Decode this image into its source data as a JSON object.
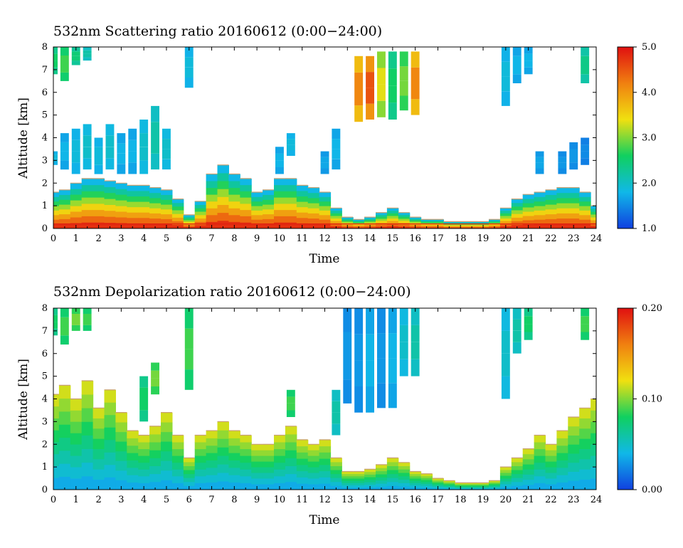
{
  "chart_data": [
    {
      "type": "heatmap",
      "title": "532nm Scattering ratio  20160612 (0:00−24:00)",
      "xlabel": "Time",
      "ylabel": "Altitude [km]",
      "xlim": [
        0,
        24
      ],
      "ylim": [
        0,
        8
      ],
      "x_ticks": [
        "0",
        "1",
        "2",
        "3",
        "4",
        "5",
        "6",
        "7",
        "8",
        "9",
        "10",
        "11",
        "12",
        "13",
        "14",
        "15",
        "16",
        "17",
        "18",
        "19",
        "20",
        "21",
        "22",
        "23",
        "24"
      ],
      "y_ticks": [
        "0",
        "1",
        "2",
        "3",
        "4",
        "5",
        "6",
        "7",
        "8"
      ],
      "colorbar": {
        "range": [
          1.0,
          5.0
        ],
        "tick_labels": [
          "1.0",
          "2.0",
          "3.0",
          "4.0",
          "5.0"
        ],
        "colors": [
          "#1040e0",
          "#10b8e8",
          "#10d060",
          "#f0e010",
          "#f08010",
          "#e01010"
        ]
      },
      "column_profiles": [
        {
          "t": 0.0,
          "top": 1.6,
          "clouds": [
            [
              2.8,
              3.4,
              1.9
            ],
            [
              6.8,
              8.0,
              2.6
            ]
          ]
        },
        {
          "t": 0.5,
          "top": 1.7,
          "clouds": [
            [
              2.6,
              4.2,
              1.8
            ],
            [
              6.5,
              8.0,
              2.8
            ]
          ]
        },
        {
          "t": 1.0,
          "top": 2.0,
          "clouds": [
            [
              2.4,
              4.4,
              1.9
            ],
            [
              7.2,
              8.0,
              2.5
            ]
          ]
        },
        {
          "t": 1.5,
          "top": 2.2,
          "clouds": [
            [
              2.6,
              4.6,
              2.0
            ],
            [
              7.4,
              8.0,
              2.2
            ]
          ]
        },
        {
          "t": 2.0,
          "top": 2.2,
          "clouds": [
            [
              2.4,
              4.0,
              1.9
            ]
          ]
        },
        {
          "t": 2.5,
          "top": 2.1,
          "clouds": [
            [
              2.6,
              4.6,
              2.0
            ]
          ]
        },
        {
          "t": 3.0,
          "top": 2.0,
          "clouds": [
            [
              2.4,
              4.2,
              1.8
            ]
          ]
        },
        {
          "t": 3.5,
          "top": 1.9,
          "clouds": [
            [
              2.4,
              4.4,
              1.8
            ]
          ]
        },
        {
          "t": 4.0,
          "top": 1.9,
          "clouds": [
            [
              2.4,
              4.8,
              2.0
            ]
          ]
        },
        {
          "t": 4.5,
          "top": 1.8,
          "clouds": [
            [
              2.6,
              5.4,
              2.2
            ]
          ]
        },
        {
          "t": 5.0,
          "top": 1.7,
          "clouds": [
            [
              2.6,
              4.4,
              2.0
            ]
          ]
        },
        {
          "t": 5.5,
          "top": 1.3,
          "clouds": []
        },
        {
          "t": 6.0,
          "top": 0.6,
          "clouds": [
            [
              6.2,
              8.0,
              1.9
            ]
          ]
        },
        {
          "t": 6.5,
          "top": 1.2,
          "clouds": []
        },
        {
          "t": 7.0,
          "top": 2.4,
          "clouds": []
        },
        {
          "t": 7.5,
          "top": 2.8,
          "clouds": []
        },
        {
          "t": 8.0,
          "top": 2.4,
          "clouds": []
        },
        {
          "t": 8.5,
          "top": 2.2,
          "clouds": []
        },
        {
          "t": 9.0,
          "top": 1.6,
          "clouds": []
        },
        {
          "t": 9.5,
          "top": 1.7,
          "clouds": []
        },
        {
          "t": 10.0,
          "top": 2.2,
          "clouds": [
            [
              2.4,
              3.6,
              1.8
            ]
          ]
        },
        {
          "t": 10.5,
          "top": 2.2,
          "clouds": [
            [
              3.2,
              4.2,
              1.9
            ]
          ]
        },
        {
          "t": 11.0,
          "top": 1.9,
          "clouds": []
        },
        {
          "t": 11.5,
          "top": 1.8,
          "clouds": []
        },
        {
          "t": 12.0,
          "top": 1.6,
          "clouds": [
            [
              2.4,
              3.4,
              1.7
            ]
          ]
        },
        {
          "t": 12.5,
          "top": 0.9,
          "clouds": [
            [
              2.6,
              4.4,
              1.8
            ]
          ]
        },
        {
          "t": 13.0,
          "top": 0.5,
          "clouds": []
        },
        {
          "t": 13.5,
          "top": 0.4,
          "clouds": [
            [
              4.7,
              7.6,
              4.2
            ]
          ]
        },
        {
          "t": 14.0,
          "top": 0.5,
          "clouds": [
            [
              4.8,
              7.6,
              4.6
            ]
          ]
        },
        {
          "t": 14.5,
          "top": 0.7,
          "clouds": [
            [
              4.9,
              7.8,
              3.4
            ]
          ]
        },
        {
          "t": 15.0,
          "top": 0.9,
          "clouds": [
            [
              4.8,
              7.8,
              2.6
            ]
          ]
        },
        {
          "t": 15.5,
          "top": 0.7,
          "clouds": [
            [
              5.2,
              7.8,
              3.0
            ]
          ]
        },
        {
          "t": 16.0,
          "top": 0.5,
          "clouds": [
            [
              5.0,
              7.8,
              4.2
            ]
          ]
        },
        {
          "t": 16.5,
          "top": 0.4,
          "clouds": []
        },
        {
          "t": 17.0,
          "top": 0.4,
          "clouds": []
        },
        {
          "t": 17.5,
          "top": 0.3,
          "clouds": []
        },
        {
          "t": 18.0,
          "top": 0.3,
          "clouds": []
        },
        {
          "t": 18.5,
          "top": 0.3,
          "clouds": []
        },
        {
          "t": 19.0,
          "top": 0.3,
          "clouds": []
        },
        {
          "t": 19.5,
          "top": 0.4,
          "clouds": []
        },
        {
          "t": 20.0,
          "top": 0.9,
          "clouds": [
            [
              5.4,
              8.0,
              1.9
            ]
          ]
        },
        {
          "t": 20.5,
          "top": 1.3,
          "clouds": [
            [
              6.4,
              8.0,
              1.8
            ]
          ]
        },
        {
          "t": 21.0,
          "top": 1.5,
          "clouds": [
            [
              6.8,
              8.0,
              1.8
            ]
          ]
        },
        {
          "t": 21.5,
          "top": 1.6,
          "clouds": [
            [
              2.4,
              3.4,
              1.7
            ]
          ]
        },
        {
          "t": 22.0,
          "top": 1.7,
          "clouds": []
        },
        {
          "t": 22.5,
          "top": 1.8,
          "clouds": [
            [
              2.4,
              3.4,
              1.6
            ]
          ]
        },
        {
          "t": 23.0,
          "top": 1.8,
          "clouds": [
            [
              2.6,
              3.8,
              1.6
            ]
          ]
        },
        {
          "t": 23.5,
          "top": 1.6,
          "clouds": [
            [
              2.8,
              4.0,
              1.5
            ],
            [
              6.4,
              8.0,
              2.4
            ]
          ]
        },
        {
          "t": 24.0,
          "top": 1.0,
          "clouds": []
        }
      ]
    },
    {
      "type": "heatmap",
      "title": "532nm Depolarization ratio  20160612 (0:00−24:00)",
      "xlabel": "Time",
      "ylabel": "Altitude [km]",
      "xlim": [
        0,
        24
      ],
      "ylim": [
        0,
        8
      ],
      "x_ticks": [
        "0",
        "1",
        "2",
        "3",
        "4",
        "5",
        "6",
        "7",
        "8",
        "9",
        "10",
        "11",
        "12",
        "13",
        "14",
        "15",
        "16",
        "17",
        "18",
        "19",
        "20",
        "21",
        "22",
        "23",
        "24"
      ],
      "y_ticks": [
        "0",
        "1",
        "2",
        "3",
        "4",
        "5",
        "6",
        "7",
        "8"
      ],
      "colorbar": {
        "range": [
          0.0,
          0.2
        ],
        "tick_labels": [
          "0.00",
          "0.10",
          "0.20"
        ],
        "colors": [
          "#1040e0",
          "#10b8e8",
          "#10d060",
          "#f0e010",
          "#f08010",
          "#e01010"
        ]
      },
      "column_profiles": [
        {
          "t": 0.0,
          "top": 4.2,
          "clouds": [
            [
              6.8,
              8.0,
              0.08
            ]
          ]
        },
        {
          "t": 0.5,
          "top": 4.6,
          "clouds": [
            [
              6.4,
              8.0,
              0.09
            ]
          ]
        },
        {
          "t": 1.0,
          "top": 4.0,
          "clouds": [
            [
              7.0,
              8.0,
              0.1
            ]
          ]
        },
        {
          "t": 1.5,
          "top": 4.8,
          "clouds": [
            [
              7.0,
              8.0,
              0.09
            ]
          ]
        },
        {
          "t": 2.0,
          "top": 3.6,
          "clouds": []
        },
        {
          "t": 2.5,
          "top": 4.4,
          "clouds": []
        },
        {
          "t": 3.0,
          "top": 3.4,
          "clouds": []
        },
        {
          "t": 3.5,
          "top": 2.6,
          "clouds": []
        },
        {
          "t": 4.0,
          "top": 2.4,
          "clouds": [
            [
              3.0,
              5.0,
              0.08
            ]
          ]
        },
        {
          "t": 4.5,
          "top": 2.8,
          "clouds": [
            [
              4.2,
              5.6,
              0.1
            ]
          ]
        },
        {
          "t": 5.0,
          "top": 3.4,
          "clouds": []
        },
        {
          "t": 5.5,
          "top": 2.4,
          "clouds": []
        },
        {
          "t": 6.0,
          "top": 1.4,
          "clouds": [
            [
              4.4,
              8.0,
              0.09
            ]
          ]
        },
        {
          "t": 6.5,
          "top": 2.4,
          "clouds": []
        },
        {
          "t": 7.0,
          "top": 2.6,
          "clouds": []
        },
        {
          "t": 7.5,
          "top": 3.0,
          "clouds": []
        },
        {
          "t": 8.0,
          "top": 2.6,
          "clouds": []
        },
        {
          "t": 8.5,
          "top": 2.4,
          "clouds": []
        },
        {
          "t": 9.0,
          "top": 2.0,
          "clouds": []
        },
        {
          "t": 9.5,
          "top": 2.0,
          "clouds": []
        },
        {
          "t": 10.0,
          "top": 2.4,
          "clouds": []
        },
        {
          "t": 10.5,
          "top": 2.8,
          "clouds": [
            [
              3.2,
              4.4,
              0.09
            ]
          ]
        },
        {
          "t": 11.0,
          "top": 2.2,
          "clouds": []
        },
        {
          "t": 11.5,
          "top": 2.0,
          "clouds": []
        },
        {
          "t": 12.0,
          "top": 2.2,
          "clouds": []
        },
        {
          "t": 12.5,
          "top": 1.4,
          "clouds": [
            [
              2.4,
              4.4,
              0.06
            ]
          ]
        },
        {
          "t": 13.0,
          "top": 0.8,
          "clouds": [
            [
              3.8,
              8.0,
              0.03
            ]
          ]
        },
        {
          "t": 13.5,
          "top": 0.8,
          "clouds": [
            [
              3.4,
              8.0,
              0.03
            ]
          ]
        },
        {
          "t": 14.0,
          "top": 0.9,
          "clouds": [
            [
              3.4,
              8.0,
              0.04
            ]
          ]
        },
        {
          "t": 14.5,
          "top": 1.1,
          "clouds": [
            [
              3.6,
              8.0,
              0.03
            ]
          ]
        },
        {
          "t": 15.0,
          "top": 1.4,
          "clouds": [
            [
              3.6,
              8.0,
              0.04
            ]
          ]
        },
        {
          "t": 15.5,
          "top": 1.2,
          "clouds": [
            [
              5.0,
              8.0,
              0.05
            ]
          ]
        },
        {
          "t": 16.0,
          "top": 0.8,
          "clouds": [
            [
              5.0,
              8.0,
              0.06
            ]
          ]
        },
        {
          "t": 16.5,
          "top": 0.7,
          "clouds": []
        },
        {
          "t": 17.0,
          "top": 0.5,
          "clouds": []
        },
        {
          "t": 17.5,
          "top": 0.4,
          "clouds": []
        },
        {
          "t": 18.0,
          "top": 0.3,
          "clouds": []
        },
        {
          "t": 18.5,
          "top": 0.3,
          "clouds": []
        },
        {
          "t": 19.0,
          "top": 0.3,
          "clouds": []
        },
        {
          "t": 19.5,
          "top": 0.4,
          "clouds": []
        },
        {
          "t": 20.0,
          "top": 1.0,
          "clouds": [
            [
              4.0,
              8.0,
              0.05
            ]
          ]
        },
        {
          "t": 20.5,
          "top": 1.4,
          "clouds": [
            [
              6.0,
              8.0,
              0.06
            ]
          ]
        },
        {
          "t": 21.0,
          "top": 1.8,
          "clouds": [
            [
              6.6,
              8.0,
              0.08
            ]
          ]
        },
        {
          "t": 21.5,
          "top": 2.4,
          "clouds": []
        },
        {
          "t": 22.0,
          "top": 2.0,
          "clouds": []
        },
        {
          "t": 22.5,
          "top": 2.6,
          "clouds": []
        },
        {
          "t": 23.0,
          "top": 3.2,
          "clouds": []
        },
        {
          "t": 23.5,
          "top": 3.6,
          "clouds": [
            [
              6.6,
              8.0,
              0.09
            ]
          ]
        },
        {
          "t": 24.0,
          "top": 4.0,
          "clouds": []
        }
      ]
    }
  ]
}
